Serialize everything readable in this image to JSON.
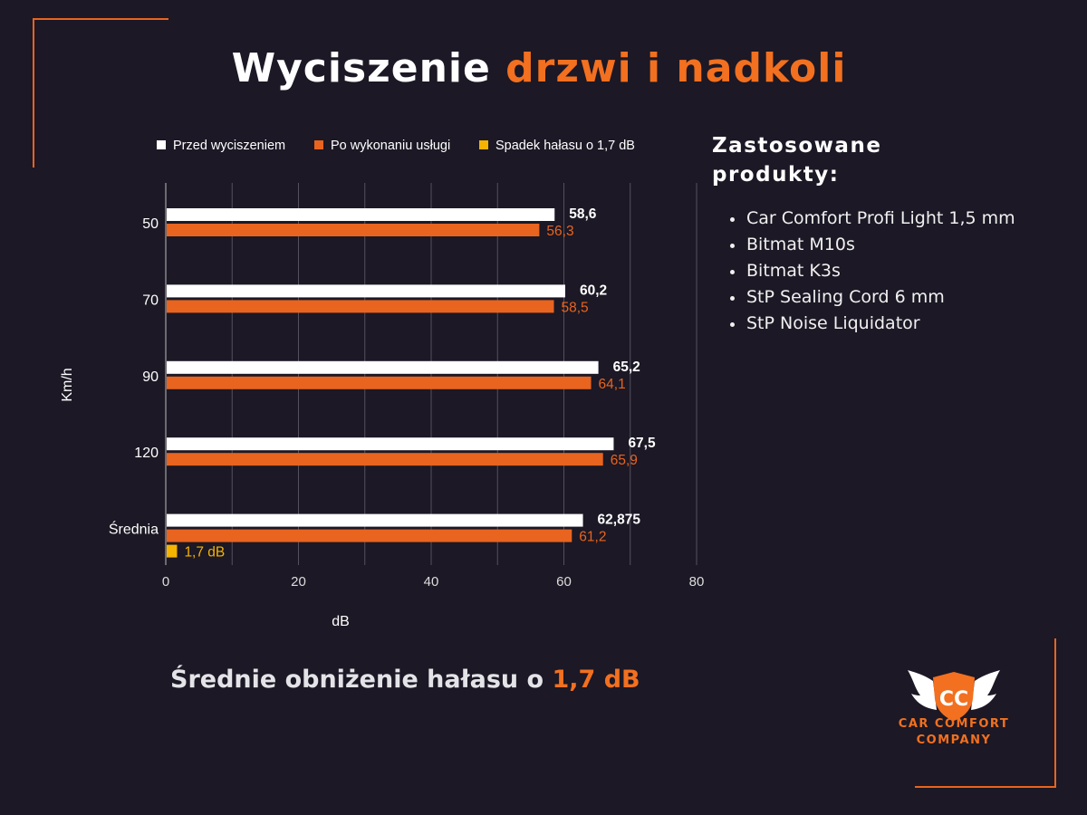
{
  "title": {
    "part1": "Wyciszenie ",
    "part2": "drzwi i nadkoli"
  },
  "chart_data": {
    "type": "bar",
    "orientation": "horizontal",
    "xlabel": "dB",
    "ylabel": "Km/h",
    "xlim": [
      0,
      80
    ],
    "x_ticks": [
      "0",
      "20",
      "40",
      "60",
      "80"
    ],
    "categories": [
      "50",
      "70",
      "90",
      "120",
      "Średnia"
    ],
    "series": [
      {
        "name": "Przed wyciszeniem",
        "color": "#ffffff",
        "values": [
          58.6,
          60.2,
          65.2,
          67.5,
          62.875
        ],
        "labels": [
          "58,6",
          "60,2",
          "65,2",
          "67,5",
          "62,875"
        ]
      },
      {
        "name": "Po wykonaniu usługi",
        "color": "#e8641f",
        "values": [
          56.3,
          58.5,
          64.1,
          65.9,
          61.2
        ],
        "labels": [
          "56,3",
          "58,5",
          "64,1",
          "65,9",
          "61,2"
        ]
      },
      {
        "name": "Spadek hałasu o 1,7 dB",
        "color": "#f5b400",
        "values": [
          null,
          null,
          null,
          null,
          1.7
        ],
        "labels": [
          "",
          "",
          "",
          "",
          "1,7 dB"
        ]
      }
    ],
    "grid": true,
    "legend": "top"
  },
  "products": {
    "heading_line1": "Zastosowane",
    "heading_line2": "produkty:",
    "items": [
      "Car Comfort Profi Light 1,5 mm",
      "Bitmat M10s",
      "Bitmat K3s",
      "StP Sealing Cord 6 mm",
      "StP Noise Liquidator"
    ]
  },
  "summary": {
    "text": "Średnie obniżenie hałasu o ",
    "value": "1,7 dB"
  },
  "logo": {
    "monogram": "CC",
    "line1": "CAR COMFORT",
    "line2": "COMPANY",
    "icon": "winged-shield-icon"
  },
  "colors": {
    "background": "#1c1825",
    "accent": "#f2701f",
    "white_bar": "#ffffff",
    "orange_bar": "#e8641f",
    "yellow_bar": "#f5b400"
  }
}
